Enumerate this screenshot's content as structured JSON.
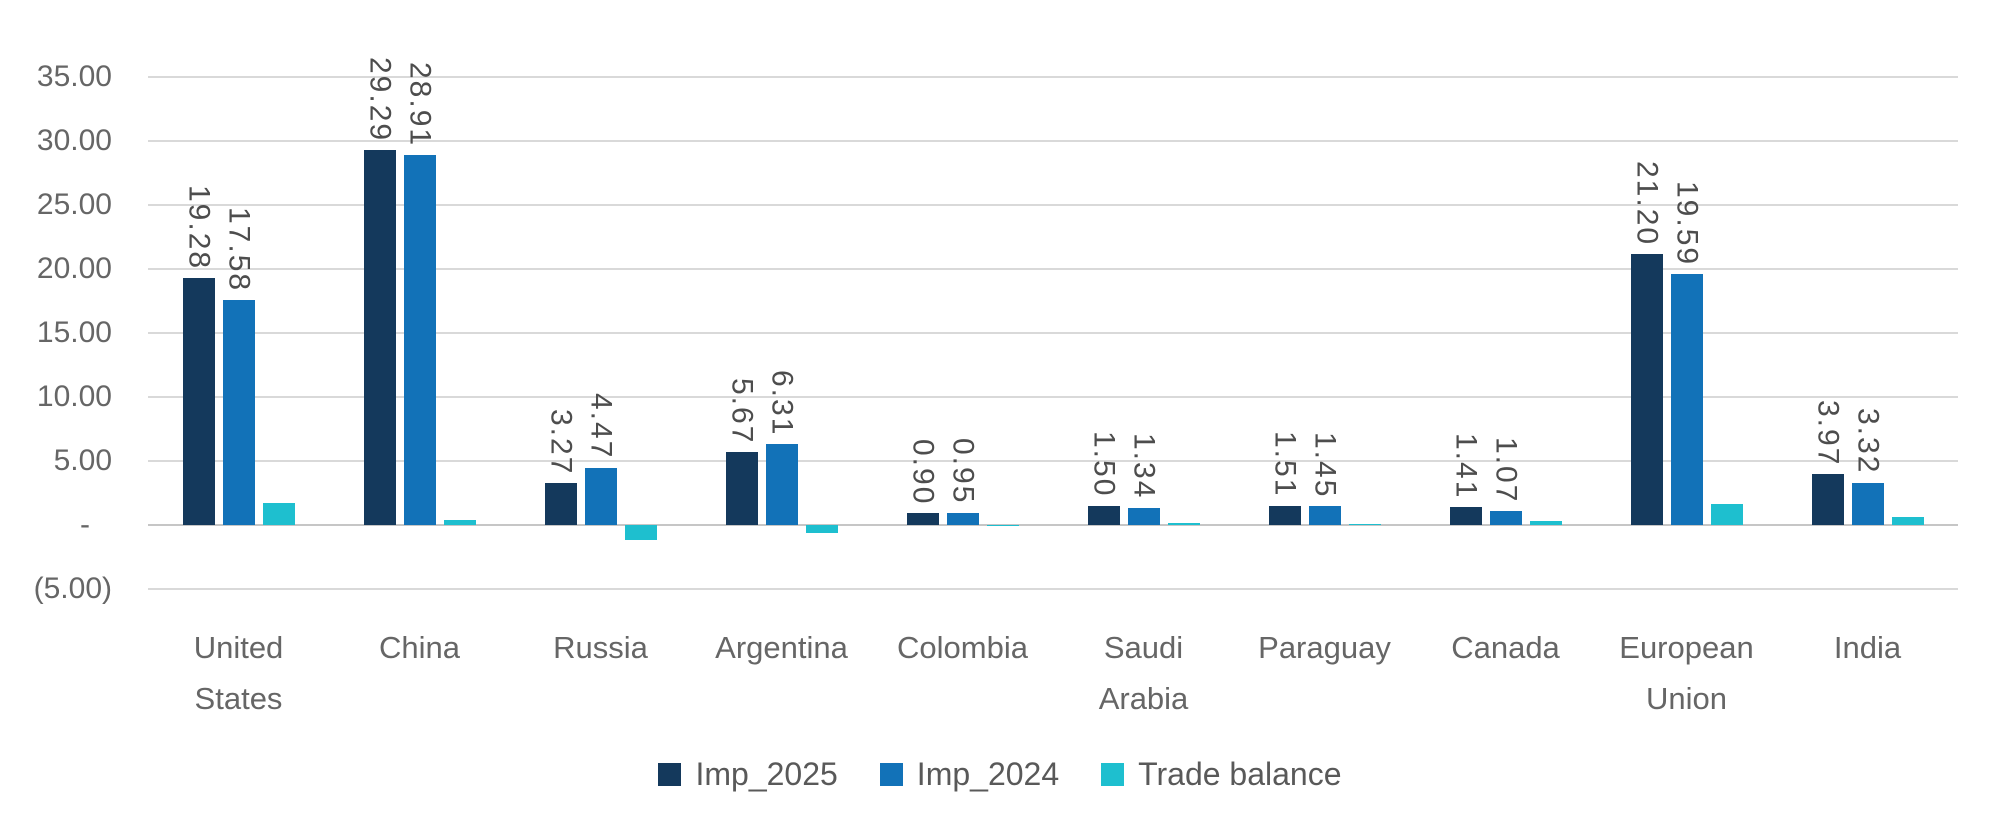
{
  "chart_data": {
    "type": "bar",
    "title": "",
    "categories": [
      "United States",
      "China",
      "Russia",
      "Argentina",
      "Colombia",
      "Saudi Arabia",
      "Paraguay",
      "Canada",
      "European Union",
      "India"
    ],
    "series": [
      {
        "name": "Imp_2025",
        "color": "#14395C",
        "show_labels": true,
        "values": [
          19.28,
          29.29,
          3.27,
          5.67,
          0.9,
          1.5,
          1.51,
          1.41,
          21.2,
          3.97
        ]
      },
      {
        "name": "Imp_2024",
        "color": "#1272B8",
        "show_labels": true,
        "values": [
          17.58,
          28.91,
          4.47,
          6.31,
          0.95,
          1.34,
          1.45,
          1.07,
          19.59,
          3.32
        ]
      },
      {
        "name": "Trade balance",
        "color": "#1EBFCF",
        "show_labels": false,
        "values": [
          1.7,
          0.38,
          -1.2,
          -0.64,
          -0.05,
          0.16,
          0.06,
          0.34,
          1.61,
          0.65
        ]
      }
    ],
    "y_axis": {
      "min": -5,
      "max": 35,
      "step": 5,
      "tick_labels": [
        "35.00",
        "30.00",
        "25.00",
        "20.00",
        "15.00",
        "10.00",
        "5.00",
        "-",
        "(5.00)"
      ]
    },
    "grid": true,
    "legend_position": "bottom",
    "value_label_format": "2dp",
    "colors": {
      "grid": "#D9D9D9",
      "zero_line": "#C6C6C6",
      "axis_text": "#666666",
      "value_label_text": "#4D4D4D"
    }
  }
}
